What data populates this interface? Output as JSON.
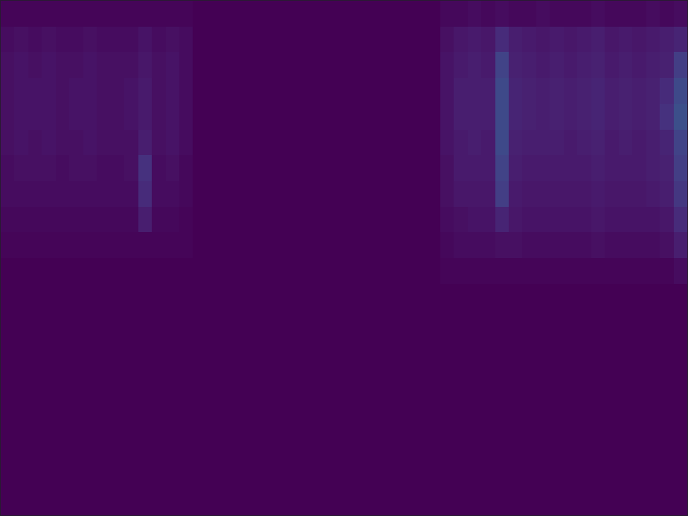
{
  "chart_data": {
    "type": "heatmap",
    "color": "Viridis",
    "zlim": [
      0,
      1
    ],
    "tick_labels": false,
    "grid": false,
    "cells": [
      [
        0.01,
        0.01,
        0.01,
        0.01,
        0.01,
        0.01,
        0.01,
        0.01,
        0.01,
        0.01,
        0.01,
        0.01,
        0.01,
        0.01,
        0,
        0,
        0,
        0,
        0,
        0,
        0,
        0,
        0,
        0,
        0,
        0,
        0,
        0,
        0,
        0,
        0,
        0,
        0.02,
        0.02,
        0.03,
        0.02,
        0.03,
        0.02,
        0.02,
        0.03,
        0.02,
        0.02,
        0.02,
        0.03,
        0.02,
        0.02,
        0.02,
        0.03,
        0.02,
        0.03
      ],
      [
        0.03,
        0.04,
        0.03,
        0.04,
        0.03,
        0.03,
        0.04,
        0.03,
        0.03,
        0.03,
        0.05,
        0.03,
        0.04,
        0.03,
        0,
        0,
        0,
        0,
        0,
        0,
        0,
        0,
        0,
        0,
        0,
        0,
        0,
        0,
        0,
        0,
        0,
        0,
        0.04,
        0.06,
        0.07,
        0.06,
        0.12,
        0.08,
        0.07,
        0.06,
        0.07,
        0.06,
        0.07,
        0.08,
        0.06,
        0.07,
        0.06,
        0.07,
        0.08,
        0.1
      ],
      [
        0.04,
        0.05,
        0.04,
        0.05,
        0.04,
        0.04,
        0.05,
        0.04,
        0.04,
        0.04,
        0.06,
        0.04,
        0.05,
        0.03,
        0,
        0,
        0,
        0,
        0,
        0,
        0,
        0,
        0,
        0,
        0,
        0,
        0,
        0,
        0,
        0,
        0,
        0,
        0.05,
        0.07,
        0.08,
        0.07,
        0.2,
        0.09,
        0.08,
        0.07,
        0.08,
        0.07,
        0.08,
        0.09,
        0.07,
        0.08,
        0.07,
        0.08,
        0.09,
        0.18
      ],
      [
        0.04,
        0.05,
        0.05,
        0.05,
        0.04,
        0.05,
        0.05,
        0.04,
        0.04,
        0.05,
        0.07,
        0.04,
        0.05,
        0.03,
        0,
        0,
        0,
        0,
        0,
        0,
        0,
        0,
        0,
        0,
        0,
        0,
        0,
        0,
        0,
        0,
        0,
        0,
        0.05,
        0.08,
        0.08,
        0.08,
        0.22,
        0.1,
        0.09,
        0.08,
        0.09,
        0.08,
        0.09,
        0.1,
        0.08,
        0.09,
        0.08,
        0.09,
        0.12,
        0.22
      ],
      [
        0.04,
        0.05,
        0.05,
        0.05,
        0.04,
        0.05,
        0.05,
        0.04,
        0.04,
        0.05,
        0.07,
        0.04,
        0.05,
        0.03,
        0,
        0,
        0,
        0,
        0,
        0,
        0,
        0,
        0,
        0,
        0,
        0,
        0,
        0,
        0,
        0,
        0,
        0,
        0.05,
        0.08,
        0.08,
        0.08,
        0.22,
        0.1,
        0.09,
        0.08,
        0.09,
        0.08,
        0.09,
        0.1,
        0.08,
        0.09,
        0.08,
        0.09,
        0.14,
        0.24
      ],
      [
        0.04,
        0.05,
        0.04,
        0.05,
        0.04,
        0.04,
        0.05,
        0.04,
        0.04,
        0.04,
        0.08,
        0.04,
        0.05,
        0.03,
        0,
        0,
        0,
        0,
        0,
        0,
        0,
        0,
        0,
        0,
        0,
        0,
        0,
        0,
        0,
        0,
        0,
        0,
        0.05,
        0.07,
        0.08,
        0.07,
        0.22,
        0.09,
        0.08,
        0.08,
        0.08,
        0.07,
        0.08,
        0.09,
        0.07,
        0.08,
        0.07,
        0.08,
        0.1,
        0.2
      ],
      [
        0.03,
        0.04,
        0.04,
        0.04,
        0.03,
        0.04,
        0.04,
        0.03,
        0.03,
        0.04,
        0.14,
        0.03,
        0.04,
        0.02,
        0,
        0,
        0,
        0,
        0,
        0,
        0,
        0,
        0,
        0,
        0,
        0,
        0,
        0,
        0,
        0,
        0,
        0,
        0.04,
        0.07,
        0.07,
        0.07,
        0.2,
        0.08,
        0.07,
        0.07,
        0.07,
        0.07,
        0.07,
        0.08,
        0.07,
        0.07,
        0.07,
        0.08,
        0.09,
        0.18
      ],
      [
        0.03,
        0.03,
        0.03,
        0.03,
        0.03,
        0.03,
        0.03,
        0.03,
        0.03,
        0.03,
        0.12,
        0.03,
        0.03,
        0.02,
        0,
        0,
        0,
        0,
        0,
        0,
        0,
        0,
        0,
        0,
        0,
        0,
        0,
        0,
        0,
        0,
        0,
        0,
        0.04,
        0.06,
        0.06,
        0.06,
        0.18,
        0.07,
        0.06,
        0.06,
        0.06,
        0.06,
        0.06,
        0.07,
        0.06,
        0.06,
        0.06,
        0.07,
        0.08,
        0.16
      ],
      [
        0.02,
        0.02,
        0.02,
        0.02,
        0.02,
        0.02,
        0.02,
        0.02,
        0.02,
        0.02,
        0.08,
        0.02,
        0.02,
        0.01,
        0,
        0,
        0,
        0,
        0,
        0,
        0,
        0,
        0,
        0,
        0,
        0,
        0,
        0,
        0,
        0,
        0,
        0,
        0.03,
        0.04,
        0.05,
        0.05,
        0.1,
        0.06,
        0.05,
        0.05,
        0.05,
        0.05,
        0.05,
        0.06,
        0.05,
        0.05,
        0.05,
        0.05,
        0.06,
        0.12
      ],
      [
        0.01,
        0.01,
        0.01,
        0.01,
        0.01,
        0.01,
        0.01,
        0.01,
        0.01,
        0.01,
        0.01,
        0.01,
        0.01,
        0.01,
        0,
        0,
        0,
        0,
        0,
        0,
        0,
        0,
        0,
        0,
        0,
        0,
        0,
        0,
        0,
        0,
        0,
        0,
        0.02,
        0.03,
        0.03,
        0.03,
        0.04,
        0.04,
        0.03,
        0.03,
        0.03,
        0.03,
        0.03,
        0.04,
        0.03,
        0.03,
        0.03,
        0.03,
        0.04,
        0.08
      ],
      [
        0,
        0,
        0,
        0,
        0,
        0,
        0,
        0,
        0,
        0,
        0,
        0,
        0,
        0,
        0,
        0,
        0,
        0,
        0,
        0,
        0,
        0,
        0,
        0,
        0,
        0,
        0,
        0,
        0,
        0,
        0,
        0,
        0.01,
        0.01,
        0.01,
        0.01,
        0.01,
        0.01,
        0.01,
        0.01,
        0.01,
        0.01,
        0.01,
        0.01,
        0.01,
        0.01,
        0.01,
        0.01,
        0.01,
        0.03
      ],
      [
        0,
        0,
        0,
        0,
        0,
        0,
        0,
        0,
        0,
        0,
        0,
        0,
        0,
        0,
        0,
        0,
        0,
        0,
        0,
        0,
        0,
        0,
        0,
        0,
        0,
        0,
        0,
        0,
        0,
        0,
        0,
        0,
        0,
        0,
        0,
        0,
        0,
        0,
        0,
        0,
        0,
        0,
        0,
        0,
        0,
        0,
        0,
        0,
        0,
        0
      ],
      [
        0,
        0,
        0,
        0,
        0,
        0,
        0,
        0,
        0,
        0,
        0,
        0,
        0,
        0,
        0,
        0,
        0,
        0,
        0,
        0,
        0,
        0,
        0,
        0,
        0,
        0,
        0,
        0,
        0,
        0,
        0,
        0,
        0,
        0,
        0,
        0,
        0,
        0,
        0,
        0,
        0,
        0,
        0,
        0,
        0,
        0,
        0,
        0,
        0,
        0
      ],
      [
        0,
        0,
        0,
        0,
        0,
        0,
        0,
        0,
        0,
        0,
        0,
        0,
        0,
        0,
        0,
        0,
        0,
        0,
        0,
        0,
        0,
        0,
        0,
        0,
        0,
        0,
        0,
        0,
        0,
        0,
        0,
        0,
        0,
        0,
        0,
        0,
        0,
        0,
        0,
        0,
        0,
        0,
        0,
        0,
        0,
        0,
        0,
        0,
        0,
        0
      ],
      [
        0,
        0,
        0,
        0,
        0,
        0,
        0,
        0,
        0,
        0,
        0,
        0,
        0,
        0,
        0,
        0,
        0,
        0,
        0,
        0,
        0,
        0,
        0,
        0,
        0,
        0,
        0,
        0,
        0,
        0,
        0,
        0,
        0,
        0,
        0,
        0,
        0,
        0,
        0,
        0,
        0,
        0,
        0,
        0,
        0,
        0,
        0,
        0,
        0,
        0
      ],
      [
        0,
        0,
        0,
        0,
        0,
        0,
        0,
        0,
        0,
        0,
        0,
        0,
        0,
        0,
        0,
        0,
        0,
        0,
        0,
        0,
        0,
        0,
        0,
        0,
        0,
        0,
        0,
        0,
        0,
        0,
        0,
        0,
        0,
        0,
        0,
        0,
        0,
        0,
        0,
        0,
        0,
        0,
        0,
        0,
        0,
        0,
        0,
        0,
        0,
        0
      ],
      [
        0,
        0,
        0,
        0,
        0,
        0,
        0,
        0,
        0,
        0,
        0,
        0,
        0,
        0,
        0,
        0,
        0,
        0,
        0,
        0,
        0,
        0,
        0,
        0,
        0,
        0,
        0,
        0,
        0,
        0,
        0,
        0,
        0,
        0,
        0,
        0,
        0,
        0,
        0,
        0,
        0,
        0,
        0,
        0,
        0,
        0,
        0,
        0,
        0,
        0
      ],
      [
        0,
        0,
        0,
        0,
        0,
        0,
        0,
        0,
        0,
        0,
        0,
        0,
        0,
        0,
        0,
        0,
        0,
        0,
        0,
        0,
        0,
        0,
        0,
        0,
        0,
        0,
        0,
        0,
        0,
        0,
        0,
        0,
        0,
        0,
        0,
        0,
        0,
        0,
        0,
        0,
        0,
        0,
        0,
        0,
        0,
        0,
        0,
        0,
        0,
        0
      ],
      [
        0,
        0,
        0,
        0,
        0,
        0,
        0,
        0,
        0,
        0,
        0,
        0,
        0,
        0,
        0,
        0,
        0,
        0,
        0,
        0,
        0,
        0,
        0,
        0,
        0,
        0,
        0,
        0,
        0,
        0,
        0,
        0,
        0,
        0,
        0,
        0,
        0,
        0,
        0,
        0,
        0,
        0,
        0,
        0,
        0,
        0,
        0,
        0,
        0,
        0
      ],
      [
        0,
        0,
        0,
        0,
        0,
        0,
        0,
        0,
        0,
        0,
        0,
        0,
        0,
        0,
        0,
        0,
        0,
        0,
        0,
        0,
        0,
        0,
        0,
        0,
        0,
        0,
        0,
        0,
        0,
        0,
        0,
        0,
        0,
        0,
        0,
        0,
        0,
        0,
        0,
        0,
        0,
        0,
        0,
        0,
        0,
        0,
        0,
        0,
        0,
        0
      ]
    ]
  }
}
